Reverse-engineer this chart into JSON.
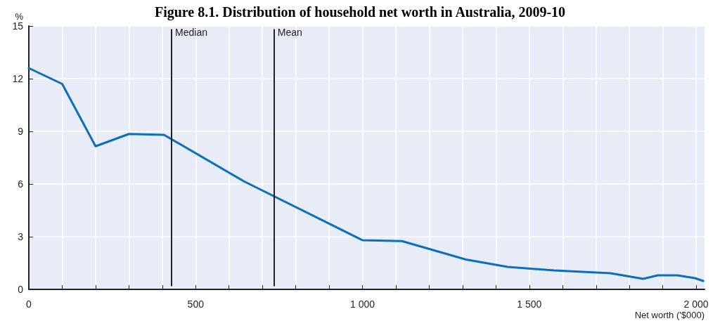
{
  "chart_data": {
    "type": "line",
    "title": "Figure 8.1. Distribution of household net worth in Australia, 2009-10",
    "xlabel": "Net worth ('$000)",
    "ylabel": "%",
    "x": [
      0,
      100,
      200,
      300,
      405,
      645,
      1000,
      1118,
      1310,
      1435,
      1574,
      1743,
      1841,
      1885,
      1944,
      1996,
      2021
    ],
    "series": [
      {
        "color": "#0a6fbd",
        "values": [
          12.6,
          11.7,
          8.15,
          8.85,
          8.8,
          6.15,
          2.8,
          2.75,
          1.7,
          1.28,
          1.08,
          0.92,
          0.6,
          0.8,
          0.8,
          0.64,
          0.48
        ]
      }
    ],
    "xlim": [
      0,
      2025
    ],
    "xticks": [
      0,
      {
        "value": 100,
        "label": null
      },
      {
        "value": 200,
        "label": null
      },
      {
        "value": 300,
        "label": null
      },
      {
        "value": 400,
        "label": null
      },
      500,
      {
        "value": 600,
        "label": null
      },
      {
        "value": 700,
        "label": null
      },
      {
        "value": 800,
        "label": null
      },
      {
        "value": 900,
        "label": null
      },
      {
        "value": 1000,
        "label": "1 000"
      },
      {
        "value": 1100,
        "label": null
      },
      {
        "value": 1200,
        "label": null
      },
      {
        "value": 1300,
        "label": null
      },
      {
        "value": 1400,
        "label": null
      },
      {
        "value": 1500,
        "label": "1 500"
      },
      {
        "value": 1600,
        "label": null
      },
      {
        "value": 1700,
        "label": null
      },
      {
        "value": 1800,
        "label": null
      },
      {
        "value": 1900,
        "label": null
      },
      {
        "value": 2000,
        "label": "2 000"
      }
    ],
    "ylim": [
      0,
      15
    ],
    "yticks": [
      0,
      3,
      6,
      9,
      12,
      15
    ],
    "ref_lines": [
      {
        "axis": "x",
        "value": 428,
        "label": "Median",
        "color": "#222222"
      },
      {
        "axis": "x",
        "value": 735,
        "label": "Mean",
        "color": "#222222"
      }
    ],
    "grid": true,
    "marker": "none",
    "line_style": "solid"
  }
}
